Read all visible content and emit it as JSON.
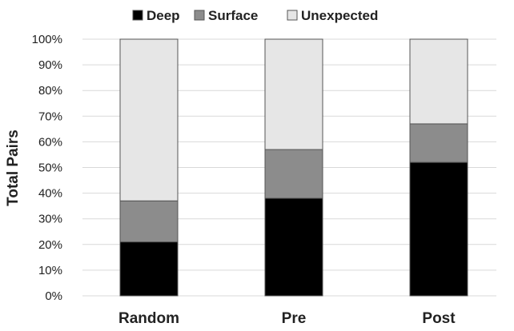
{
  "chart_data": {
    "type": "bar",
    "stacked": true,
    "categories": [
      "Random",
      "Pre",
      "Post"
    ],
    "series": [
      {
        "name": "Deep",
        "values": [
          21,
          38,
          52
        ],
        "color": "#000000"
      },
      {
        "name": "Surface",
        "values": [
          16,
          19,
          15
        ],
        "color": "#8c8c8c"
      },
      {
        "name": "Unexpected",
        "values": [
          63,
          43,
          33
        ],
        "color": "#e6e6e6"
      }
    ],
    "ylabel": "Total Pairs",
    "xlabel": "",
    "ylim": [
      0,
      100
    ],
    "yticks": [
      "0%",
      "10%",
      "20%",
      "30%",
      "40%",
      "50%",
      "60%",
      "70%",
      "80%",
      "90%",
      "100%"
    ],
    "grid": true,
    "legend_position": "top"
  }
}
